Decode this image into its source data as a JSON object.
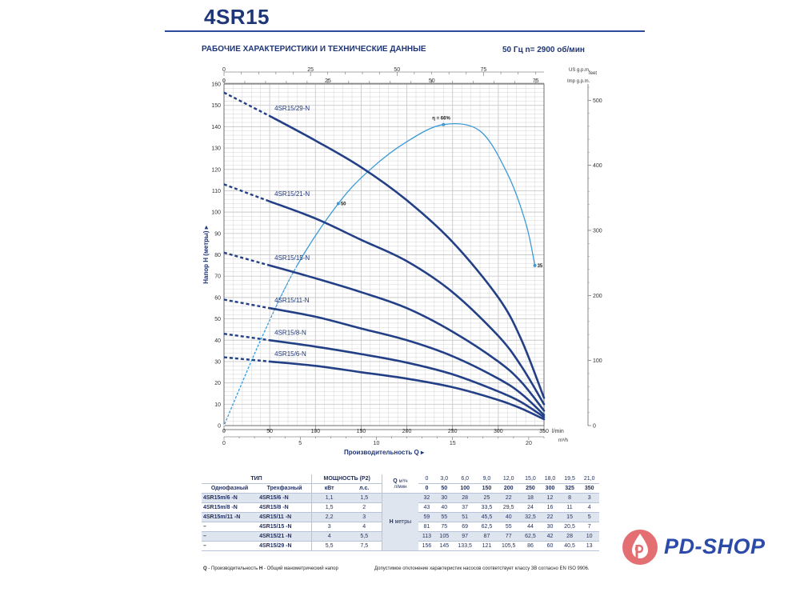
{
  "title": "4SR15",
  "subtitle": "РАБОЧИЕ ХАРАКТЕРИСТИКИ И ТЕХНИЧЕСКИЕ ДАННЫЕ",
  "freq_label": "50 Гц   n= 2900 об/мин",
  "chart_data": {
    "type": "line",
    "xlabel": "Производительность Q",
    "ylabel": "Напор H (метры)",
    "x_unit_bottom": "l/min",
    "x_unit_m3h": "m³/h",
    "x_unit_usgpm": "US g.p.m.",
    "x_unit_impgpm": "Imp g.p.m.",
    "y_unit_right": "feet",
    "xlim": [
      0,
      350
    ],
    "ylim": [
      0,
      160
    ],
    "x_ticks_lmin": [
      0,
      50,
      100,
      150,
      200,
      250,
      300,
      350
    ],
    "x_ticks_m3h": [
      0,
      5,
      10,
      15,
      20
    ],
    "x_ticks_usgpm": [
      0,
      25,
      50,
      75
    ],
    "x_ticks_impgpm": [
      0,
      25,
      50,
      75
    ],
    "y_ticks": [
      0,
      10,
      20,
      30,
      40,
      50,
      60,
      70,
      80,
      90,
      100,
      110,
      120,
      130,
      140,
      150,
      160
    ],
    "y_ticks_feet": [
      0,
      100,
      200,
      300,
      400,
      500
    ],
    "grid": true,
    "series": [
      {
        "name": "4SR15/29-N",
        "x": [
          0,
          50,
          100,
          150,
          200,
          250,
          300,
          325,
          350
        ],
        "y": [
          156,
          145,
          133.5,
          121,
          105.5,
          86,
          60,
          40.5,
          13
        ],
        "dashed_until": 50
      },
      {
        "name": "4SR15/21-N",
        "x": [
          0,
          50,
          100,
          150,
          200,
          250,
          300,
          325,
          350
        ],
        "y": [
          113,
          105,
          97,
          87,
          77,
          62.5,
          42,
          28,
          10
        ],
        "dashed_until": 50
      },
      {
        "name": "4SR15/15-N",
        "x": [
          0,
          50,
          100,
          150,
          200,
          250,
          300,
          325,
          350
        ],
        "y": [
          81,
          75,
          69,
          62.5,
          55,
          44,
          30,
          20.5,
          7
        ],
        "dashed_until": 50
      },
      {
        "name": "4SR15/11-N",
        "x": [
          0,
          50,
          100,
          150,
          200,
          250,
          300,
          325,
          350
        ],
        "y": [
          59,
          55,
          51,
          45.5,
          40,
          32.5,
          22,
          15,
          5
        ],
        "dashed_until": 50
      },
      {
        "name": "4SR15/8-N",
        "x": [
          0,
          50,
          100,
          150,
          200,
          250,
          300,
          325,
          350
        ],
        "y": [
          43,
          40,
          37,
          33.5,
          29.5,
          24,
          16,
          11,
          4
        ],
        "dashed_until": 50
      },
      {
        "name": "4SR15/6-N",
        "x": [
          0,
          50,
          100,
          150,
          200,
          250,
          300,
          325,
          350
        ],
        "y": [
          32,
          30,
          28,
          25,
          22,
          18,
          12,
          8,
          3
        ],
        "dashed_until": 50
      }
    ],
    "efficiency_curve": {
      "x": [
        0,
        40,
        80,
        125,
        160,
        200,
        240,
        280,
        310,
        330,
        340
      ],
      "y": [
        0,
        40,
        75,
        104,
        120,
        133,
        141,
        138,
        118,
        95,
        75
      ],
      "labels": [
        {
          "x": 125,
          "y": 104,
          "text": "50"
        },
        {
          "x": 240,
          "y": 141,
          "text": "η = 66%"
        },
        {
          "x": 340,
          "y": 75,
          "text": "35"
        }
      ]
    }
  },
  "table": {
    "head1": {
      "tip": "ТИП",
      "power": "МОЩНОСТЬ (P2)",
      "q": "Q",
      "q_unit1": "м³/ч",
      "q_unit2": "л/мин"
    },
    "head2": {
      "single": "Однофазный",
      "three": "Трехфазный",
      "kw": "кВт",
      "hp": "л.с."
    },
    "flow_m3h": [
      "0",
      "3,0",
      "6,0",
      "9,0",
      "12,0",
      "15,0",
      "18,0",
      "19,5",
      "21,0"
    ],
    "flow_lmin": [
      "0",
      "50",
      "100",
      "150",
      "200",
      "250",
      "300",
      "325",
      "350"
    ],
    "h_label": "H",
    "h_unit": "метры",
    "rows": [
      {
        "single": "4SR15m/6  -N",
        "three": "4SR15/6   -N",
        "kw": "1,1",
        "hp": "1,5",
        "h": [
          "32",
          "30",
          "28",
          "25",
          "22",
          "18",
          "12",
          "8",
          "3"
        ]
      },
      {
        "single": "4SR15m/8  -N",
        "three": "4SR15/8   -N",
        "kw": "1,5",
        "hp": "2",
        "h": [
          "43",
          "40",
          "37",
          "33,5",
          "29,5",
          "24",
          "16",
          "11",
          "4"
        ]
      },
      {
        "single": "4SR15m/11 -N",
        "three": "4SR15/11  -N",
        "kw": "2,2",
        "hp": "3",
        "h": [
          "59",
          "55",
          "51",
          "45,5",
          "40",
          "32,5",
          "22",
          "15",
          "5"
        ]
      },
      {
        "single": "–",
        "three": "4SR15/15  -N",
        "kw": "3",
        "hp": "4",
        "h": [
          "81",
          "75",
          "69",
          "62,5",
          "55",
          "44",
          "30",
          "20,5",
          "7"
        ]
      },
      {
        "single": "–",
        "three": "4SR15/21  -N",
        "kw": "4",
        "hp": "5,5",
        "h": [
          "113",
          "105",
          "97",
          "87",
          "77",
          "62,5",
          "42",
          "28",
          "10"
        ]
      },
      {
        "single": "–",
        "three": "4SR15/29  -N",
        "kw": "5,5",
        "hp": "7,5",
        "h": [
          "156",
          "145",
          "133,5",
          "121",
          "105,5",
          "86",
          "60",
          "40,5",
          "13"
        ]
      }
    ]
  },
  "footer_left_bold_q": "Q",
  "footer_left_q": " - Производительность   ",
  "footer_left_bold_h": "H",
  "footer_left_h": " - Общий манометрический напор",
  "footer_right": "Допустимое отклонение характеристик насосов соответствует классу 3В согласно EN ISO 9906.",
  "brand": "PD-SHOP",
  "colors": {
    "pump_curve": "#233f86",
    "efficiency": "#3a9ad6",
    "grid": "#c9c9c9",
    "brand": "#2c4aa8",
    "brand_drop": "#e46f73"
  }
}
